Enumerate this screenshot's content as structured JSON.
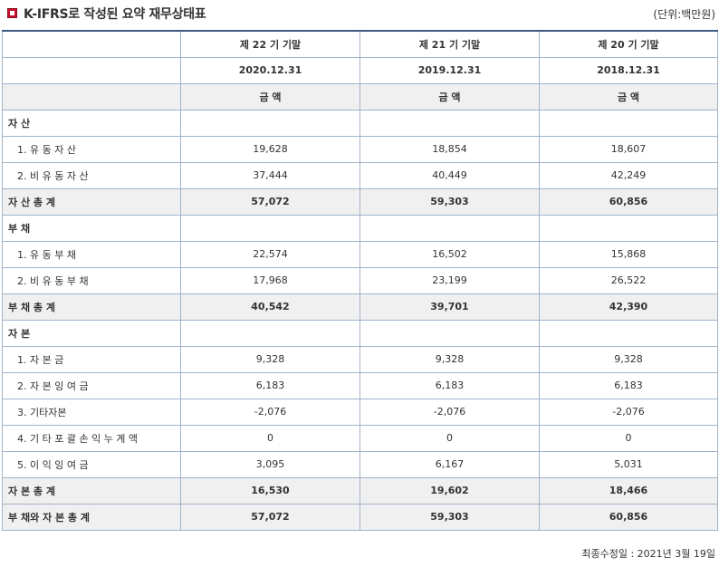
{
  "header": {
    "title": "K-IFRS로 작성된 요약 재무상태표",
    "unit": "(단위:백만원)"
  },
  "columns": {
    "periods": [
      "제 22 기 기말",
      "제 21 기 기말",
      "제 20 기 기말"
    ],
    "dates": [
      "2020.12.31",
      "2019.12.31",
      "2018.12.31"
    ],
    "amount_label": "금 액"
  },
  "rows": [
    {
      "label": "자 산",
      "values": [
        "",
        "",
        ""
      ]
    },
    {
      "label": "1. 유 동 자 산",
      "values": [
        "19,628",
        "18,854",
        "18,607"
      ]
    },
    {
      "label": "2. 비 유 동 자 산",
      "values": [
        "37,444",
        "40,449",
        "42,249"
      ]
    },
    {
      "label": "자 산 총 계",
      "values": [
        "57,072",
        "59,303",
        "60,856"
      ]
    },
    {
      "label": "부 채",
      "values": [
        "",
        "",
        ""
      ]
    },
    {
      "label": "1. 유 동 부 채",
      "values": [
        "22,574",
        "16,502",
        "15,868"
      ]
    },
    {
      "label": "2. 비 유 동 부 채",
      "values": [
        "17,968",
        "23,199",
        "26,522"
      ]
    },
    {
      "label": "부 채 총 계",
      "values": [
        "40,542",
        "39,701",
        "42,390"
      ]
    },
    {
      "label": "자 본",
      "values": [
        "",
        "",
        ""
      ]
    },
    {
      "label": "1. 자 본 금",
      "values": [
        "9,328",
        "9,328",
        "9,328"
      ]
    },
    {
      "label": "2. 자 본 잉 여 금",
      "values": [
        "6,183",
        "6,183",
        "6,183"
      ]
    },
    {
      "label": "3. 기타자본",
      "values": [
        "-2,076",
        "-2,076",
        "-2,076"
      ]
    },
    {
      "label": "4. 기 타 포 괄 손 익 누 계 액",
      "values": [
        "0",
        "0",
        "0"
      ]
    },
    {
      "label": "5. 이 익 잉 여 금",
      "values": [
        "3,095",
        "6,167",
        "5,031"
      ]
    },
    {
      "label": "자 본 총 계",
      "values": [
        "16,530",
        "19,602",
        "18,466"
      ]
    },
    {
      "label": "부 채와 자 본 총 계",
      "values": [
        "57,072",
        "59,303",
        "60,856"
      ]
    }
  ],
  "footer": {
    "last_modified": "최종수정일 : 2021년 3월 19일"
  }
}
